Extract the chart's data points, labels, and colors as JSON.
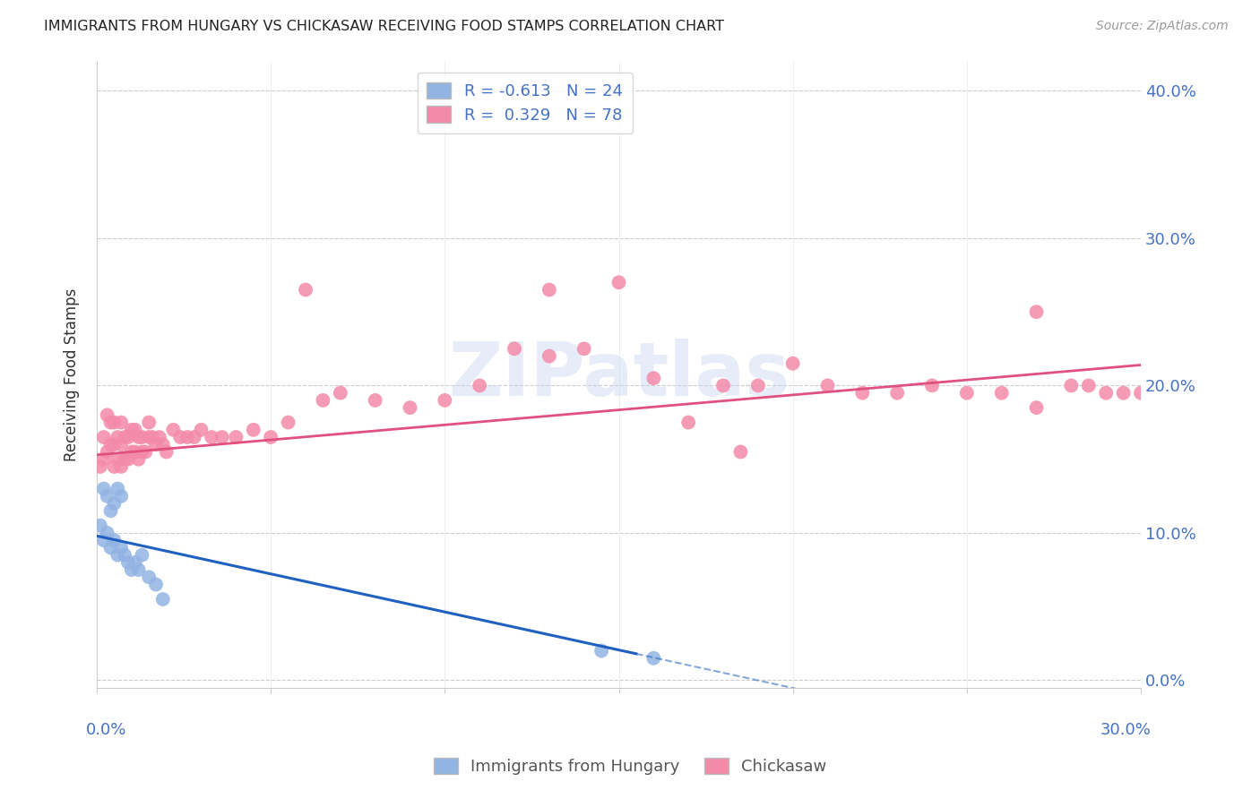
{
  "title": "IMMIGRANTS FROM HUNGARY VS CHICKASAW RECEIVING FOOD STAMPS CORRELATION CHART",
  "source": "Source: ZipAtlas.com",
  "ylabel": "Receiving Food Stamps",
  "ytick_values": [
    0.0,
    0.1,
    0.2,
    0.3,
    0.4
  ],
  "xlim": [
    0.0,
    0.3
  ],
  "ylim": [
    -0.005,
    0.42
  ],
  "legend_r_blue": "R = -0.613",
  "legend_n_blue": "N = 24",
  "legend_r_pink": "R =  0.329",
  "legend_n_pink": "N = 78",
  "blue_color": "#92b4e3",
  "pink_color": "#f48aaa",
  "blue_line_color": "#2060c0",
  "pink_line_color": "#e05080",
  "watermark_text": "ZIPatlas",
  "blue_scatter_x": [
    0.001,
    0.002,
    0.002,
    0.003,
    0.003,
    0.004,
    0.004,
    0.005,
    0.005,
    0.006,
    0.006,
    0.007,
    0.007,
    0.008,
    0.009,
    0.01,
    0.011,
    0.012,
    0.013,
    0.015,
    0.017,
    0.019,
    0.145,
    0.16
  ],
  "blue_scatter_y": [
    0.105,
    0.095,
    0.13,
    0.1,
    0.125,
    0.09,
    0.115,
    0.095,
    0.12,
    0.085,
    0.13,
    0.09,
    0.125,
    0.085,
    0.08,
    0.075,
    0.08,
    0.075,
    0.085,
    0.07,
    0.065,
    0.055,
    0.02,
    0.015
  ],
  "pink_scatter_x": [
    0.001,
    0.002,
    0.002,
    0.003,
    0.003,
    0.004,
    0.004,
    0.005,
    0.005,
    0.005,
    0.006,
    0.006,
    0.007,
    0.007,
    0.007,
    0.008,
    0.008,
    0.009,
    0.009,
    0.01,
    0.01,
    0.011,
    0.011,
    0.012,
    0.012,
    0.013,
    0.013,
    0.014,
    0.015,
    0.015,
    0.016,
    0.017,
    0.018,
    0.019,
    0.02,
    0.022,
    0.024,
    0.026,
    0.028,
    0.03,
    0.033,
    0.036,
    0.04,
    0.045,
    0.05,
    0.055,
    0.06,
    0.065,
    0.07,
    0.08,
    0.09,
    0.1,
    0.11,
    0.12,
    0.13,
    0.14,
    0.15,
    0.16,
    0.17,
    0.18,
    0.19,
    0.2,
    0.21,
    0.22,
    0.23,
    0.24,
    0.25,
    0.26,
    0.27,
    0.28,
    0.285,
    0.29,
    0.295,
    0.3,
    0.305,
    0.13,
    0.27,
    0.185
  ],
  "pink_scatter_y": [
    0.145,
    0.15,
    0.165,
    0.155,
    0.18,
    0.16,
    0.175,
    0.145,
    0.16,
    0.175,
    0.15,
    0.165,
    0.145,
    0.16,
    0.175,
    0.15,
    0.165,
    0.15,
    0.165,
    0.155,
    0.17,
    0.155,
    0.17,
    0.15,
    0.165,
    0.155,
    0.165,
    0.155,
    0.165,
    0.175,
    0.165,
    0.16,
    0.165,
    0.16,
    0.155,
    0.17,
    0.165,
    0.165,
    0.165,
    0.17,
    0.165,
    0.165,
    0.165,
    0.17,
    0.165,
    0.175,
    0.265,
    0.19,
    0.195,
    0.19,
    0.185,
    0.19,
    0.2,
    0.225,
    0.22,
    0.225,
    0.27,
    0.205,
    0.175,
    0.2,
    0.2,
    0.215,
    0.2,
    0.195,
    0.195,
    0.2,
    0.195,
    0.195,
    0.185,
    0.2,
    0.2,
    0.195,
    0.195,
    0.195,
    0.19,
    0.265,
    0.25,
    0.155
  ],
  "blue_line_x0": 0.0,
  "blue_line_x1": 0.155,
  "blue_line_y0": 0.098,
  "blue_line_y1": 0.018,
  "pink_line_x0": 0.0,
  "pink_line_x1": 0.305,
  "pink_line_y0": 0.153,
  "pink_line_y1": 0.215
}
